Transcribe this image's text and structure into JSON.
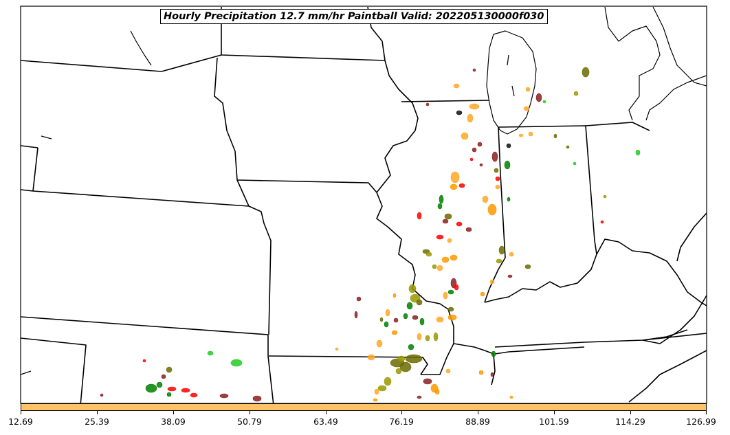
{
  "title": "Hourly Precipitation 12.7 mm/hr Paintball Valid: 202205130000f030",
  "colorbar": {
    "color": "#ffc266",
    "ticks": [
      "12.69",
      "25.39",
      "38.09",
      "50.79",
      "63.49",
      "76.19",
      "88.89",
      "101.59",
      "114.29",
      "126.99"
    ]
  },
  "paintball_colors": [
    "#ff9900",
    "#ffa726",
    "#ff0000",
    "#8b2020",
    "#6b6b00",
    "#999900",
    "#008000",
    "#22cc22",
    "#111111"
  ]
}
